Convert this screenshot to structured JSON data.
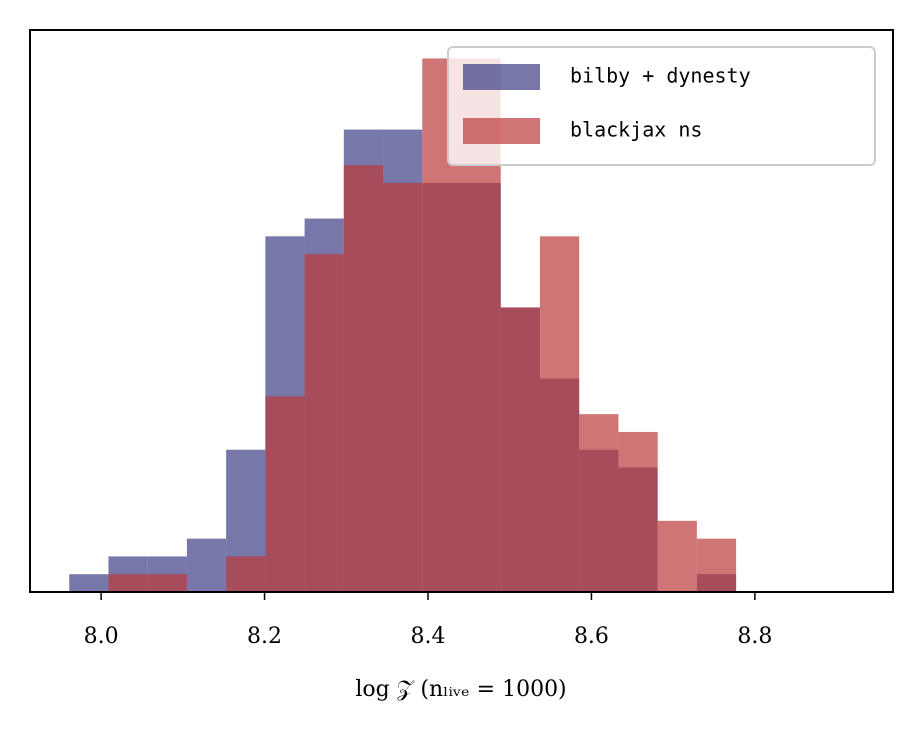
{
  "chart_data": {
    "type": "histogram",
    "x_label": "log 𝒵 (nₗᵢᵥₑ = 1000)",
    "bins": [
      7.961,
      8.009,
      8.057,
      8.105,
      8.153,
      8.201,
      8.249,
      8.297,
      8.345,
      8.393,
      8.441,
      8.489,
      8.537,
      8.585,
      8.633,
      8.681,
      8.729,
      8.777
    ],
    "series": [
      {
        "name": "bilby + dynesty",
        "color": "#3d3d85",
        "values": [
          1,
          2,
          2,
          3,
          8,
          20,
          21,
          26,
          26,
          23,
          23,
          16,
          12,
          8,
          7,
          0,
          1
        ]
      },
      {
        "name": "blackjax ns",
        "color": "#bc3a3a",
        "values": [
          0,
          1,
          1,
          0,
          2,
          11,
          19,
          24,
          23,
          30,
          30,
          16,
          20,
          10,
          9,
          4,
          3
        ]
      }
    ],
    "opacity": 0.7,
    "xlim": [
      7.913,
      8.969
    ],
    "ylim": [
      0,
      31.6
    ],
    "xticks": [
      {
        "value": 8.0,
        "label": "8.0"
      },
      8.2,
      8.4,
      8.6,
      8.8
    ],
    "legend": "upper right"
  }
}
